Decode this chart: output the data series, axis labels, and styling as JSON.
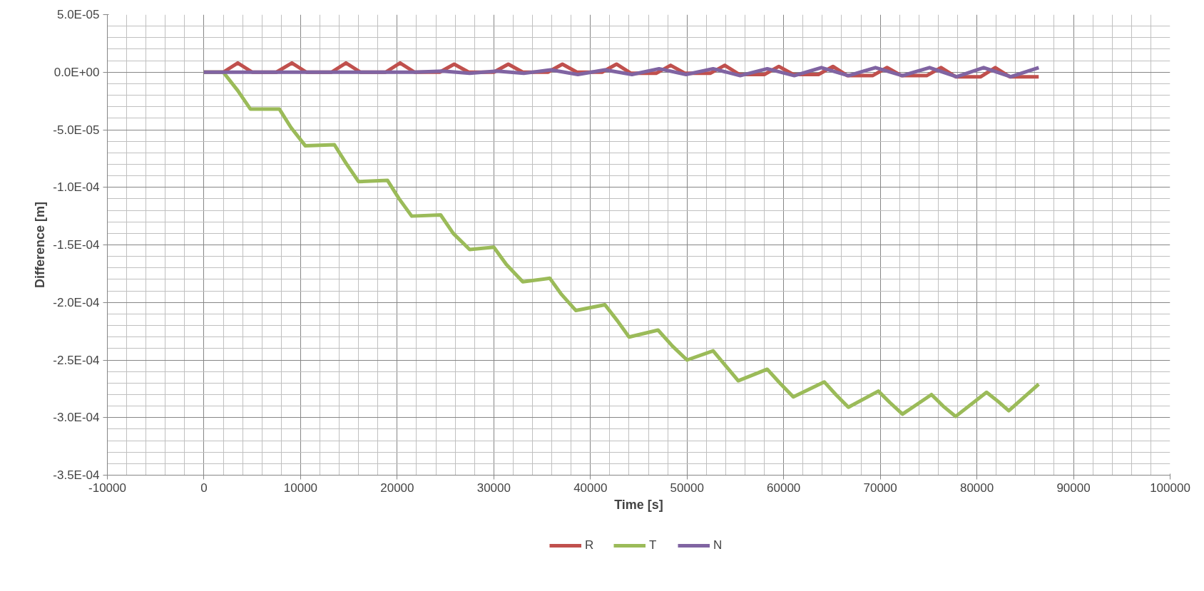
{
  "chart_data": {
    "type": "line",
    "xlabel": "Time [s]",
    "ylabel": "Difference [m]",
    "xlim": [
      -10000,
      100000
    ],
    "xticks": [
      -10000,
      0,
      10000,
      20000,
      30000,
      40000,
      50000,
      60000,
      70000,
      80000,
      90000,
      100000
    ],
    "ylim": [
      -0.00035,
      5e-05
    ],
    "yticks": [
      {
        "value": 5e-05,
        "label": "5.0E-05"
      },
      {
        "value": 0,
        "label": "0.0E+00"
      },
      {
        "value": -5e-05,
        "label": "-5.0E-05"
      },
      {
        "value": -0.0001,
        "label": "-1.0E-04"
      },
      {
        "value": -0.00015,
        "label": "-1.5E-04"
      },
      {
        "value": -0.0002,
        "label": "-2.0E-04"
      },
      {
        "value": -0.00025,
        "label": "-2.5E-04"
      },
      {
        "value": -0.0003,
        "label": "-3.0E-04"
      },
      {
        "value": -0.00035,
        "label": "-3.5E-04"
      }
    ],
    "grid": true,
    "legend": "bottom",
    "marker": "none",
    "line_style": "solid",
    "series": [
      {
        "name": "R",
        "color": "#c0504d",
        "x": [
          0,
          2000,
          3500,
          5000,
          7500,
          9100,
          10600,
          13200,
          14700,
          16200,
          18800,
          20300,
          21800,
          24400,
          25900,
          27400,
          30000,
          31500,
          33000,
          35600,
          37100,
          38600,
          41200,
          42700,
          44200,
          46800,
          48300,
          49800,
          52400,
          53900,
          55400,
          58000,
          59500,
          61000,
          63600,
          65100,
          66600,
          69200,
          70700,
          72200,
          74800,
          76300,
          77800,
          80400,
          81900,
          83400,
          86400
        ],
        "values": [
          0,
          0,
          8e-06,
          0,
          0,
          8e-06,
          0,
          0,
          8e-06,
          0,
          0,
          8e-06,
          0,
          0,
          7e-06,
          0,
          0,
          7e-06,
          0,
          0,
          7e-06,
          0,
          0,
          7e-06,
          -1e-06,
          -1e-06,
          6e-06,
          -1e-06,
          -1e-06,
          6e-06,
          -2e-06,
          -2e-06,
          5e-06,
          -2e-06,
          -2e-06,
          5e-06,
          -3e-06,
          -3e-06,
          4e-06,
          -3e-06,
          -3e-06,
          4e-06,
          -4e-06,
          -4e-06,
          4e-06,
          -4e-06,
          -4e-06
        ]
      },
      {
        "name": "T",
        "color": "#9bbb59",
        "x": [
          0,
          2000,
          3500,
          4800,
          7800,
          9000,
          10500,
          13500,
          14700,
          16000,
          19000,
          20200,
          21500,
          24500,
          25800,
          27500,
          30000,
          31300,
          33000,
          35800,
          37000,
          38500,
          41500,
          42800,
          44000,
          47000,
          48500,
          50000,
          52700,
          54000,
          55300,
          58300,
          59600,
          61000,
          64200,
          65400,
          66700,
          69800,
          71000,
          72300,
          75300,
          76500,
          77800,
          81000,
          82200,
          83300,
          86400
        ],
        "values": [
          0,
          0,
          -1.6e-05,
          -3.2e-05,
          -3.2e-05,
          -4.8e-05,
          -6.4e-05,
          -6.3e-05,
          -7.9e-05,
          -9.5e-05,
          -9.4e-05,
          -0.00011,
          -0.000125,
          -0.000124,
          -0.00014,
          -0.000154,
          -0.000152,
          -0.000167,
          -0.000182,
          -0.000179,
          -0.000193,
          -0.000207,
          -0.000202,
          -0.000216,
          -0.00023,
          -0.000224,
          -0.000238,
          -0.00025,
          -0.000242,
          -0.000255,
          -0.000268,
          -0.000258,
          -0.00027,
          -0.000282,
          -0.000269,
          -0.00028,
          -0.000291,
          -0.000277,
          -0.000287,
          -0.000297,
          -0.00028,
          -0.00029,
          -0.000299,
          -0.000278,
          -0.000286,
          -0.000294,
          -0.000271
        ]
      },
      {
        "name": "N",
        "color": "#8064a2",
        "x": [
          0,
          2000,
          5000,
          10000,
          13500,
          16300,
          19000,
          21800,
          24700,
          27500,
          30300,
          33100,
          35900,
          38700,
          41500,
          44300,
          47100,
          49900,
          52700,
          55500,
          58300,
          61100,
          63900,
          66700,
          69500,
          72300,
          75100,
          77900,
          80700,
          83500,
          86400
        ],
        "values": [
          0,
          0,
          0,
          0,
          0,
          0,
          0,
          0,
          1e-06,
          -1e-06,
          1e-06,
          -1e-06,
          2e-06,
          -2e-06,
          2e-06,
          -2e-06,
          3e-06,
          -2e-06,
          3e-06,
          -3e-06,
          3e-06,
          -3e-06,
          4e-06,
          -3e-06,
          4e-06,
          -3e-06,
          4e-06,
          -4e-06,
          4e-06,
          -4e-06,
          4e-06
        ]
      }
    ]
  }
}
